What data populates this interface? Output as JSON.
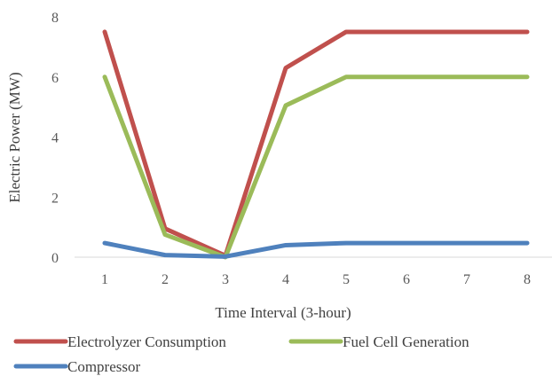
{
  "chart_data": {
    "type": "line",
    "title": "",
    "xlabel": "Time Interval (3-hour)",
    "ylabel": "Electric Power (MW)",
    "categories": [
      "1",
      "2",
      "3",
      "4",
      "5",
      "6",
      "7",
      "8"
    ],
    "ylim": [
      0,
      8
    ],
    "yticks": [
      "0",
      "2",
      "4",
      "6",
      "8"
    ],
    "grid": false,
    "legend_position": "bottom",
    "series": [
      {
        "name": "Electrolyzer Consumption",
        "color": "#c0504d",
        "values": [
          7.5,
          0.95,
          0.05,
          6.3,
          7.5,
          7.5,
          7.5,
          7.5
        ]
      },
      {
        "name": "Fuel Cell Generation",
        "color": "#9bbb59",
        "values": [
          6.0,
          0.75,
          0.0,
          5.05,
          6.0,
          6.0,
          6.0,
          6.0
        ]
      },
      {
        "name": "Compressor",
        "color": "#4f81bd",
        "values": [
          0.47,
          0.07,
          0.02,
          0.4,
          0.47,
          0.47,
          0.47,
          0.47
        ]
      }
    ]
  }
}
